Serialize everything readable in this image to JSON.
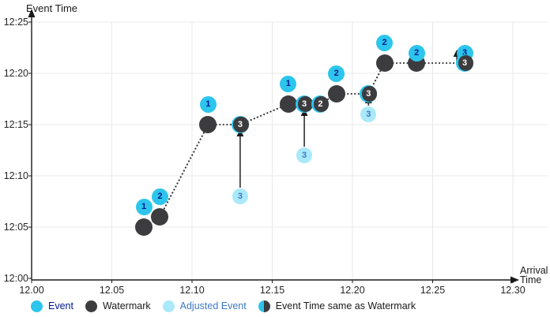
{
  "colors": {
    "event_cyan": "#2cc5ec",
    "adjusted_light_cyan": "#a9e9f9",
    "watermark_dark": "#3c3c3f",
    "event_number_navy": "#00188f",
    "adjusted_number_blue": "#3e79c6",
    "grid_gray": "#e9e9e9",
    "axis_black": "#1a1a1a"
  },
  "legend": [
    {
      "label": "Event"
    },
    {
      "label": "Watermark"
    },
    {
      "label": "Adjusted Event"
    },
    {
      "label": "Event Time same as Watermark"
    }
  ],
  "chart_data": {
    "type": "scatter",
    "title": "",
    "xlabel": "Arrival Time",
    "ylabel": "Event Time",
    "x_ticks": [
      "12.00",
      "12.05",
      "12.10",
      "12.15",
      "12.20",
      "12.25",
      "12.30"
    ],
    "y_ticks": [
      "12:00",
      "12:05",
      "12:10",
      "12:15",
      "12:20",
      "12:25"
    ],
    "x_range": [
      12.0,
      12.3
    ],
    "y_range": [
      "12:00",
      "12:25"
    ],
    "grid": true,
    "legend_position": "bottom",
    "watermark_path": [
      [
        "12.07",
        "12:05"
      ],
      [
        "12.08",
        "12:06"
      ],
      [
        "12.11",
        "12:15"
      ],
      [
        "12.13",
        "12:15"
      ],
      [
        "12.16",
        "12:17"
      ],
      [
        "12.17",
        "12:17"
      ],
      [
        "12.18",
        "12:17"
      ],
      [
        "12.19",
        "12:18"
      ],
      [
        "12.21",
        "12:18"
      ],
      [
        "12.22",
        "12:21"
      ],
      [
        "12.24",
        "12:21"
      ],
      [
        "12.27",
        "12:21"
      ]
    ],
    "watermark_dots": [
      [
        "12.07",
        "12:05"
      ],
      [
        "12.08",
        "12:06"
      ],
      [
        "12.11",
        "12:15"
      ],
      [
        "12.16",
        "12:17"
      ],
      [
        "12.19",
        "12:18"
      ],
      [
        "12.22",
        "12:21"
      ],
      [
        "12.24",
        "12:21"
      ]
    ],
    "events": [
      {
        "label": "1",
        "arrival": "12.07",
        "event_time": "12:07"
      },
      {
        "label": "2",
        "arrival": "12.08",
        "event_time": "12:08"
      },
      {
        "label": "1",
        "arrival": "12.11",
        "event_time": "12:17"
      },
      {
        "label": "1",
        "arrival": "12.16",
        "event_time": "12:19"
      },
      {
        "label": "2",
        "arrival": "12.19",
        "event_time": "12:20"
      },
      {
        "label": "2",
        "arrival": "12.22",
        "event_time": "12:23"
      },
      {
        "label": "2",
        "arrival": "12.24",
        "event_time": "12:22"
      },
      {
        "label": "3",
        "arrival": "12.27",
        "event_time": "12:22"
      }
    ],
    "adjusted_events": [
      {
        "label": "3",
        "arrival": "12.13",
        "event_time": "12:08"
      },
      {
        "label": "3",
        "arrival": "12.17",
        "event_time": "12:12"
      },
      {
        "label": "3",
        "arrival": "12.21",
        "event_time": "12:16"
      }
    ],
    "same_as_watermark": [
      {
        "label": "3",
        "arrival": "12.13",
        "event_time": "12:15"
      },
      {
        "label": "3",
        "arrival": "12.17",
        "event_time": "12:17"
      },
      {
        "label": "2",
        "arrival": "12.18",
        "event_time": "12:17"
      },
      {
        "label": "3",
        "arrival": "12.21",
        "event_time": "12:18"
      },
      {
        "label": "3",
        "arrival": "12.27",
        "event_time": "12:21"
      }
    ],
    "adjustment_arrows": [
      {
        "arrival": "12.13",
        "from": "12:08",
        "to": "12:15"
      },
      {
        "arrival": "12.17",
        "from": "12:12",
        "to": "12:17"
      },
      {
        "arrival": "12.21",
        "from": "12:16",
        "to": "12:18"
      }
    ],
    "watermark_advance_arrow": {
      "arrival": "12.27",
      "from": "12:21",
      "to": "12:22"
    }
  }
}
